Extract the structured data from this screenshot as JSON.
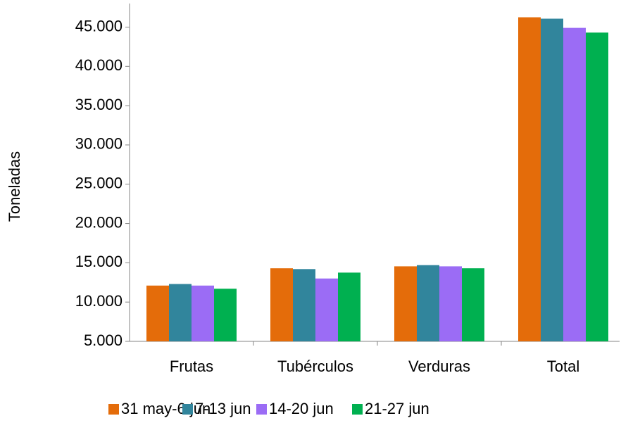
{
  "chart_data": {
    "type": "bar",
    "y_label": "Toneladas",
    "categories": [
      "Frutas",
      "Tubérculos",
      "Verduras",
      "Total"
    ],
    "series": [
      {
        "name": "31 may-6 jun",
        "color": "#e46c0a",
        "values": [
          12100,
          14300,
          14550,
          46250
        ]
      },
      {
        "name": "7-13 jun",
        "color": "#31859c",
        "values": [
          12300,
          14200,
          14700,
          46070
        ]
      },
      {
        "name": "14-20 jun",
        "color": "#9b6cf5",
        "values": [
          12100,
          13000,
          14550,
          44900
        ]
      },
      {
        "name": "21-27 jun",
        "color": "#00b050",
        "values": [
          11700,
          13750,
          14300,
          44300
        ]
      }
    ],
    "ylim": [
      5000,
      48000
    ],
    "yticks": [
      {
        "value": 5000,
        "label": "5.000"
      },
      {
        "value": 10000,
        "label": "10.000"
      },
      {
        "value": 15000,
        "label": "15.000"
      },
      {
        "value": 20000,
        "label": "20.000"
      },
      {
        "value": 25000,
        "label": "25.000"
      },
      {
        "value": 30000,
        "label": "30.000"
      },
      {
        "value": 35000,
        "label": "35.000"
      },
      {
        "value": 40000,
        "label": "40.000"
      },
      {
        "value": 45000,
        "label": "45.000"
      }
    ]
  }
}
